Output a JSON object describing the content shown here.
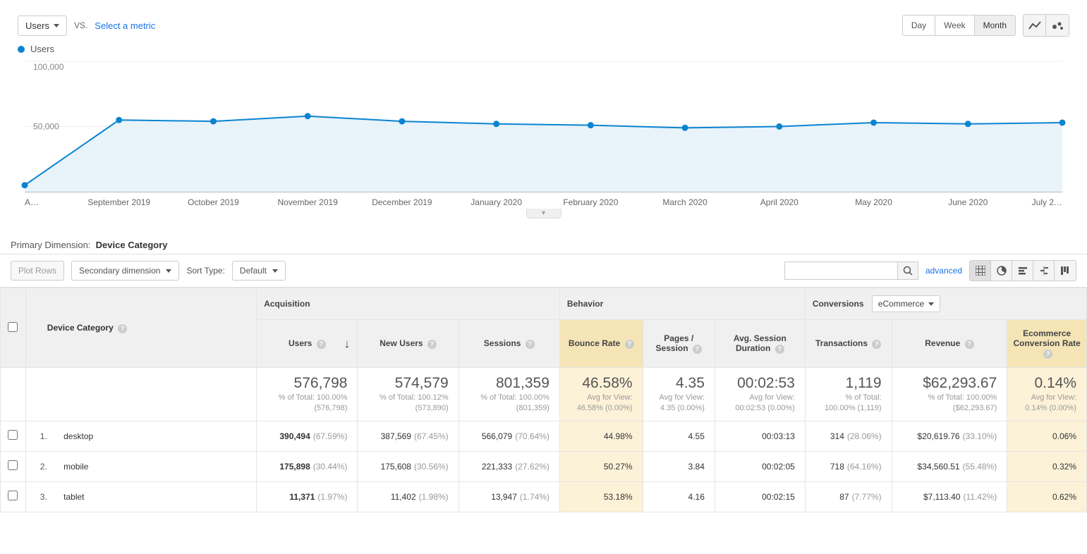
{
  "toolbar": {
    "metric_selector": "Users",
    "vs": "VS.",
    "select_metric": "Select a metric",
    "time_buttons": [
      "Day",
      "Week",
      "Month"
    ],
    "active_time": "Month"
  },
  "chart": {
    "type": "line",
    "legend_label": "Users",
    "legend_color": "#0b84d0",
    "y_label": "100,000",
    "y_mid_label": "50,000",
    "ylim": [
      0,
      100000
    ],
    "line_color": "#0b84d0",
    "fill_color": "#e8f3fa",
    "marker_radius": 4.5,
    "x_labels": [
      "A…",
      "September 2019",
      "October 2019",
      "November 2019",
      "December 2019",
      "January 2020",
      "February 2020",
      "March 2020",
      "April 2020",
      "May 2020",
      "June 2020",
      "July 2…"
    ],
    "values": [
      5000,
      55000,
      54000,
      58000,
      54000,
      52000,
      51000,
      49000,
      50000,
      53000,
      52000,
      53000
    ]
  },
  "dimension_label": "Primary Dimension:",
  "dimension_value": "Device Category",
  "controls": {
    "plot_rows": "Plot Rows",
    "secondary_dim": "Secondary dimension",
    "sort_type_label": "Sort Type:",
    "sort_type_value": "Default",
    "advanced": "advanced"
  },
  "table": {
    "groups": {
      "acquisition": "Acquisition",
      "behavior": "Behavior",
      "conversions": "Conversions",
      "conversions_select": "eCommerce"
    },
    "dim_col": "Device Category",
    "columns": [
      "Users",
      "New Users",
      "Sessions",
      "Bounce Rate",
      "Pages / Session",
      "Avg. Session Duration",
      "Transactions",
      "Revenue",
      "Ecommerce Conversion Rate"
    ],
    "highlight_cols": [
      3,
      8
    ],
    "sort_col": 0,
    "summary": [
      {
        "big": "576,798",
        "small": "% of Total: 100.00% (576,798)"
      },
      {
        "big": "574,579",
        "small": "% of Total: 100.12% (573,890)"
      },
      {
        "big": "801,359",
        "small": "% of Total: 100.00% (801,359)"
      },
      {
        "big": "46.58%",
        "small": "Avg for View: 46.58% (0.00%)"
      },
      {
        "big": "4.35",
        "small": "Avg for View: 4.35 (0.00%)"
      },
      {
        "big": "00:02:53",
        "small": "Avg for View: 00:02:53 (0.00%)"
      },
      {
        "big": "1,119",
        "small": "% of Total: 100.00% (1,119)"
      },
      {
        "big": "$62,293.67",
        "small": "% of Total: 100.00% ($62,293.67)"
      },
      {
        "big": "0.14%",
        "small": "Avg for View: 0.14% (0.00%)"
      }
    ],
    "rows": [
      {
        "n": "1.",
        "dim": "desktop",
        "cells": [
          {
            "v": "390,494",
            "p": "(67.59%)",
            "bold": true
          },
          {
            "v": "387,569",
            "p": "(67.45%)"
          },
          {
            "v": "566,079",
            "p": "(70.64%)"
          },
          {
            "v": "44.98%"
          },
          {
            "v": "4.55"
          },
          {
            "v": "00:03:13"
          },
          {
            "v": "314",
            "p": "(28.06%)"
          },
          {
            "v": "$20,619.76",
            "p": "(33.10%)"
          },
          {
            "v": "0.06%"
          }
        ]
      },
      {
        "n": "2.",
        "dim": "mobile",
        "cells": [
          {
            "v": "175,898",
            "p": "(30.44%)",
            "bold": true
          },
          {
            "v": "175,608",
            "p": "(30.56%)"
          },
          {
            "v": "221,333",
            "p": "(27.62%)"
          },
          {
            "v": "50.27%"
          },
          {
            "v": "3.84"
          },
          {
            "v": "00:02:05"
          },
          {
            "v": "718",
            "p": "(64.16%)"
          },
          {
            "v": "$34,560.51",
            "p": "(55.48%)"
          },
          {
            "v": "0.32%"
          }
        ]
      },
      {
        "n": "3.",
        "dim": "tablet",
        "cells": [
          {
            "v": "11,371",
            "p": "(1.97%)",
            "bold": true
          },
          {
            "v": "11,402",
            "p": "(1.98%)"
          },
          {
            "v": "13,947",
            "p": "(1.74%)"
          },
          {
            "v": "53.18%"
          },
          {
            "v": "4.16"
          },
          {
            "v": "00:02:15"
          },
          {
            "v": "87",
            "p": "(7.77%)"
          },
          {
            "v": "$7,113.40",
            "p": "(11.42%)"
          },
          {
            "v": "0.62%"
          }
        ]
      }
    ]
  }
}
